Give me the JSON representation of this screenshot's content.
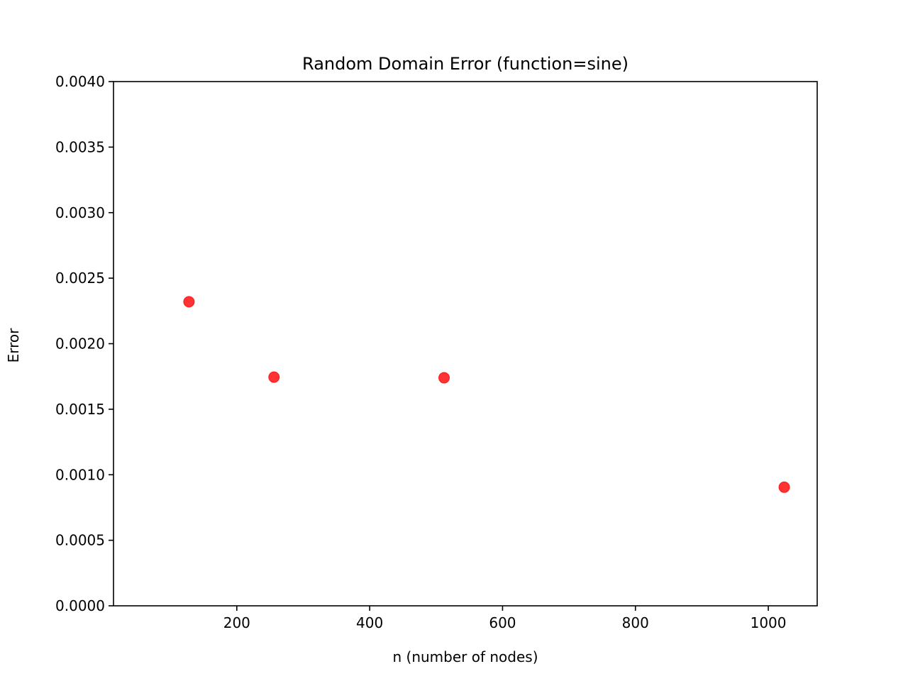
{
  "chart_data": {
    "type": "scatter",
    "title": "Random Domain Error (function=sine)",
    "xlabel": "n (number of nodes)",
    "ylabel": "Error",
    "xlim": [
      14.4,
      1073.6
    ],
    "ylim": [
      0,
      0.004
    ],
    "x_ticks": [
      {
        "value": 200,
        "label": "200"
      },
      {
        "value": 400,
        "label": "400"
      },
      {
        "value": 600,
        "label": "600"
      },
      {
        "value": 800,
        "label": "800"
      },
      {
        "value": 1000,
        "label": "1000"
      }
    ],
    "y_ticks": [
      {
        "value": 0,
        "label": "0.0000"
      },
      {
        "value": 0.0005,
        "label": "0.0005"
      },
      {
        "value": 0.001,
        "label": "0.0010"
      },
      {
        "value": 0.0015,
        "label": "0.0015"
      },
      {
        "value": 0.002,
        "label": "0.0020"
      },
      {
        "value": 0.0025,
        "label": "0.0025"
      },
      {
        "value": 0.003,
        "label": "0.0030"
      },
      {
        "value": 0.0035,
        "label": "0.0035"
      },
      {
        "value": 0.004,
        "label": "0.0040"
      }
    ],
    "series": [
      {
        "color": "#ff0000",
        "points": [
          {
            "x": 128,
            "y": 0.00232
          },
          {
            "x": 256,
            "y": 0.001745
          },
          {
            "x": 512,
            "y": 0.00174
          },
          {
            "x": 1024,
            "y": 0.000905
          }
        ]
      }
    ],
    "grid": false,
    "legend": "none"
  }
}
